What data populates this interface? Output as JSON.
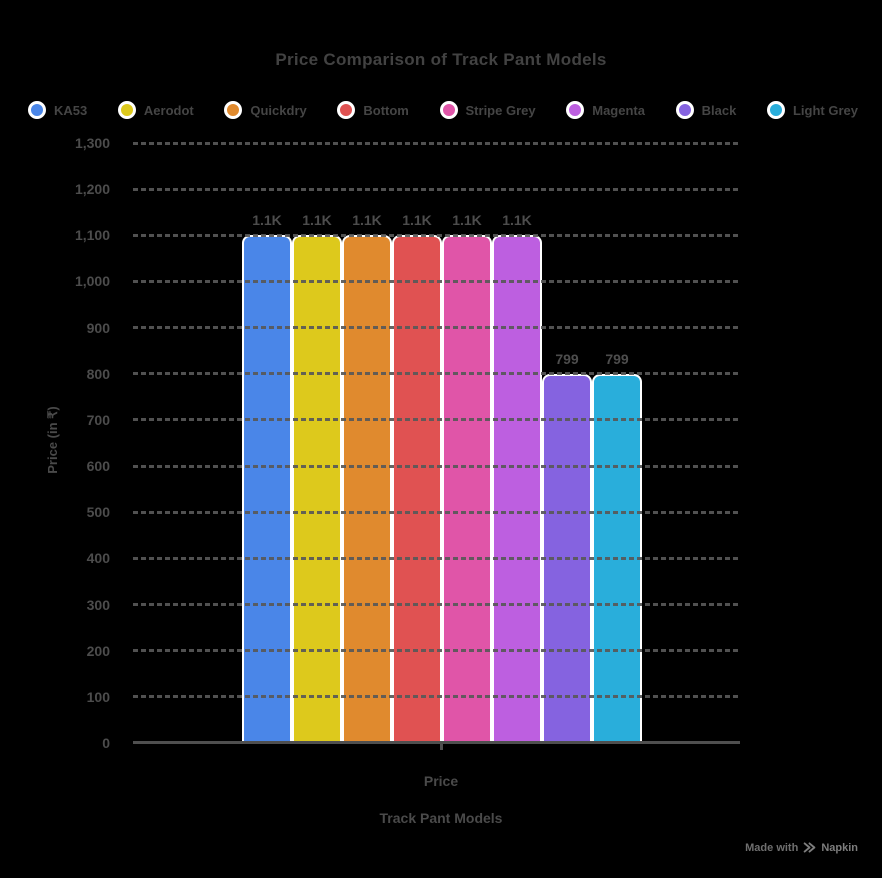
{
  "title": "Price Comparison of Track Pant Models",
  "watermark": {
    "prefix": "Made with",
    "brand": "Napkin"
  },
  "colors": {
    "background": "#000000",
    "grid": "#4f4f4f",
    "axis": "#4f4f4f",
    "title_text": "#424242",
    "label_text": "#4a4a4a",
    "watermark_text": "#6f6f6f"
  },
  "chart_data": {
    "type": "bar",
    "title": "Price Comparison of Track Pant Models",
    "xlabel": "Track Pant Models",
    "ylabel": "Price (in ₹)",
    "x_tick_labels": [
      "Price"
    ],
    "ylim": [
      0,
      1300
    ],
    "ytick_step": 100,
    "y_tick_labels": [
      "0",
      "100",
      "200",
      "300",
      "400",
      "500",
      "600",
      "700",
      "800",
      "900",
      "1,000",
      "1,100",
      "1,200",
      "1,300"
    ],
    "grid": "horizontal-dashed",
    "legend_position": "top",
    "series": [
      {
        "name": "KA53",
        "value": 1100,
        "label": "1.1K",
        "color": "#4a86e8"
      },
      {
        "name": "Aerodot",
        "value": 1100,
        "label": "1.1K",
        "color": "#ddc91c"
      },
      {
        "name": "Quickdry",
        "value": 1100,
        "label": "1.1K",
        "color": "#e08a2e"
      },
      {
        "name": "Bottom",
        "value": 1100,
        "label": "1.1K",
        "color": "#e05252"
      },
      {
        "name": "Stripe Grey",
        "value": 1100,
        "label": "1.1K",
        "color": "#e055a8"
      },
      {
        "name": "Magenta",
        "value": 1100,
        "label": "1.1K",
        "color": "#bd5fe0"
      },
      {
        "name": "Black",
        "value": 799,
        "label": "799",
        "color": "#8563e0"
      },
      {
        "name": "Light Grey",
        "value": 799,
        "label": "799",
        "color": "#29aedb"
      }
    ]
  }
}
